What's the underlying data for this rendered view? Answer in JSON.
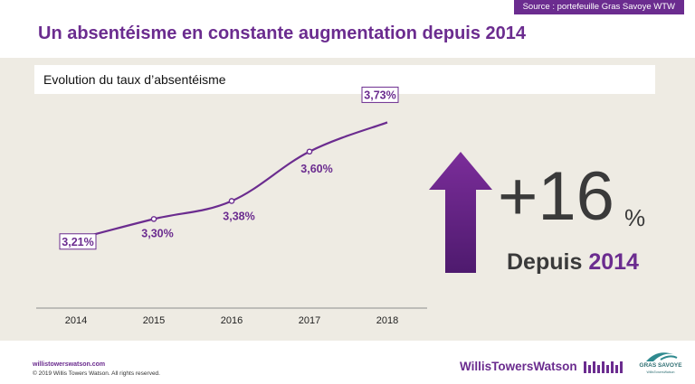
{
  "source_tag": "Source :  portefeuille Gras Savoye WTW",
  "title": "Un absentéisme en constante augmentation depuis 2014",
  "subtitle": "Evolution du taux d’absentéisme",
  "highlight": {
    "value": "+16",
    "unit": "%",
    "since_prefix": "Depuis",
    "since_year": "2014"
  },
  "colors": {
    "accent": "#6b2c8f",
    "background": "#eeebe3",
    "text_dark": "#3a3a3a"
  },
  "icons": {
    "arrow": "up-arrow-icon"
  },
  "footer": {
    "url": "willistowerswatson.com",
    "copyright": "© 2019 Willis Towers Watson. All rights reserved.",
    "logo_wtw": "WillisTowersWatson",
    "logo_gs": "GRAS SAVOYE",
    "logo_gs_sub": "WillisTowersWatson"
  },
  "chart_data": {
    "type": "line",
    "x": [
      "2014",
      "2015",
      "2016",
      "2017",
      "2018"
    ],
    "series": [
      {
        "values": [
          3.21,
          3.3,
          3.38,
          3.6,
          3.73
        ],
        "labels": [
          "3,21%",
          "3,30%",
          "3,38%",
          "3,60%",
          "3,73%"
        ]
      }
    ],
    "boxed_labels": [
      "2014",
      "2018"
    ],
    "title": "Evolution du taux d’absentéisme",
    "xlabel": "",
    "ylabel": "",
    "ylim": [
      3.0,
      3.8
    ],
    "grid": false,
    "legend": "none"
  }
}
